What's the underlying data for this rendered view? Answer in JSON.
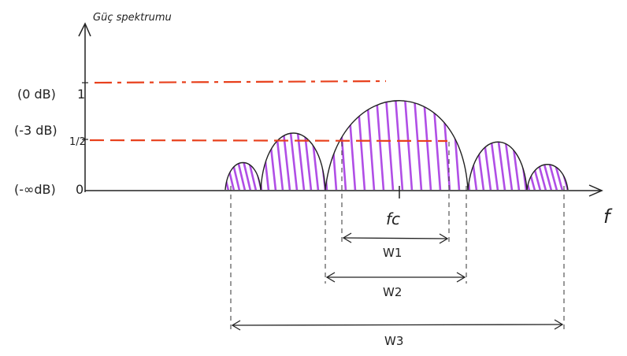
{
  "diagram": {
    "y_axis_label": "Güç spektrumu",
    "x_axis_label": "f",
    "center_label": "fc",
    "levels": [
      {
        "db_label": "(0 dB)",
        "value_label": "1"
      },
      {
        "db_label": "(-3 dB)",
        "value_label": "1/2"
      },
      {
        "db_label": "(-∞dB)",
        "value_label": "0"
      }
    ],
    "bandwidths": [
      {
        "label": "W1"
      },
      {
        "label": "W2"
      },
      {
        "label": "W3"
      }
    ],
    "colors": {
      "ink": "#222222",
      "reference_line": "#e8401c",
      "hatch": "#b04ee6"
    }
  }
}
